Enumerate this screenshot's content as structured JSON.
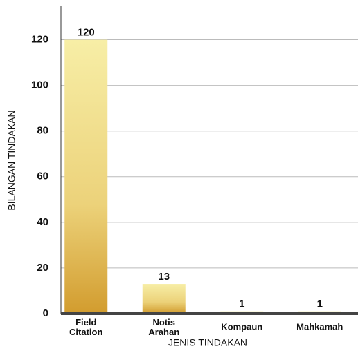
{
  "chart_data": {
    "type": "bar",
    "x_label": "JENIS TINDAKAN",
    "y_label": "BILANGAN TINDAKAN",
    "categories": [
      "Field Citation",
      "Notis Arahan",
      "Kompaun",
      "Mahkamah"
    ],
    "values": [
      120,
      13,
      1,
      1
    ],
    "ylim": [
      0,
      135
    ],
    "yticks": [
      0,
      20,
      40,
      60,
      80,
      100,
      120
    ],
    "grid": true
  }
}
